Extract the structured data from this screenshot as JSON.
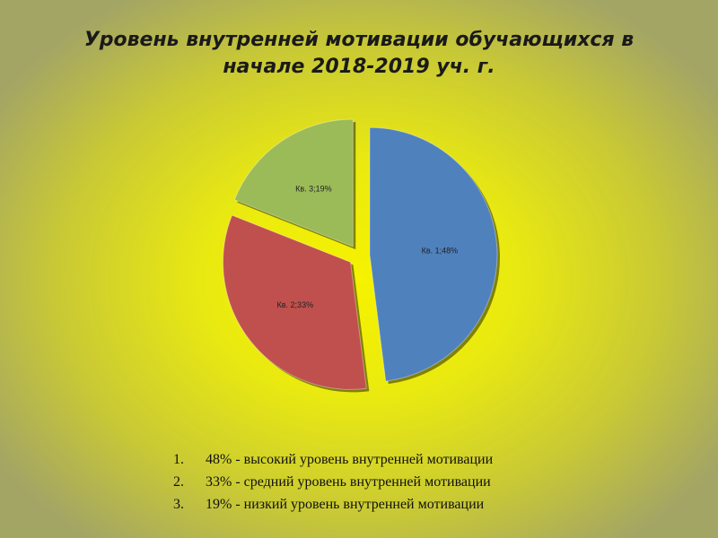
{
  "slide": {
    "title_line1": "Уровень внутренней мотивации обучающихся в",
    "title_line2": "начале 2018-2019 уч. г."
  },
  "chart_data": {
    "type": "pie",
    "exploded": true,
    "slices": [
      {
        "label": "Кв. 1;48%",
        "value": 48,
        "color": "#4f81bd"
      },
      {
        "label": "Кв. 2;33%",
        "value": 33,
        "color": "#c0504d"
      },
      {
        "label": "Кв. 3;19%",
        "value": 19,
        "color": "#9bbb59"
      }
    ]
  },
  "legend": [
    {
      "num": "1.",
      "text": "48% - высокий уровень внутренней мотивации"
    },
    {
      "num": "2.",
      "text": "33% - средний уровень внутренней мотивации"
    },
    {
      "num": "3.",
      "text": "19% - низкий уровень внутренней мотивации"
    }
  ]
}
